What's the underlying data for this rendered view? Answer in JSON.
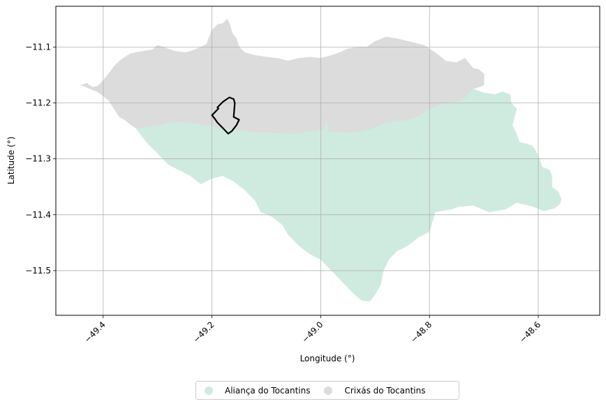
{
  "chart_data": {
    "type": "map",
    "xlabel": "Longitude (°)",
    "ylabel": "Latitude (°)",
    "xlim": [
      -49.487,
      -48.487
    ],
    "ylim": [
      -11.58,
      -11.027
    ],
    "x_ticks": [
      -49.4,
      -49.2,
      -49.0,
      -48.8,
      -48.6
    ],
    "x_tick_labels": [
      "−49.4",
      "−49.2",
      "−49.0",
      "−48.8",
      "−48.6"
    ],
    "y_ticks": [
      -11.1,
      -11.2,
      -11.3,
      -11.4,
      -11.5
    ],
    "y_tick_labels": [
      "−11.1",
      "−11.2",
      "−11.3",
      "−11.4",
      "−11.5"
    ],
    "grid": true,
    "legend_position": "bottom-center",
    "regions": [
      {
        "name": "Aliança do Tocantins",
        "color": "#cfebdf",
        "lonlat": [
          [
            -49.34,
            -11.245
          ],
          [
            -49.3,
            -11.24
          ],
          [
            -49.28,
            -11.235
          ],
          [
            -49.25,
            -11.233
          ],
          [
            -49.22,
            -11.238
          ],
          [
            -49.19,
            -11.243
          ],
          [
            -49.165,
            -11.247
          ],
          [
            -49.14,
            -11.25
          ],
          [
            -49.12,
            -11.253
          ],
          [
            -49.09,
            -11.253
          ],
          [
            -49.05,
            -11.255
          ],
          [
            -49.02,
            -11.25
          ],
          [
            -48.995,
            -11.248
          ],
          [
            -48.99,
            -11.23
          ],
          [
            -48.985,
            -11.25
          ],
          [
            -48.97,
            -11.252
          ],
          [
            -48.95,
            -11.253
          ],
          [
            -48.925,
            -11.25
          ],
          [
            -48.91,
            -11.247
          ],
          [
            -48.88,
            -11.235
          ],
          [
            -48.84,
            -11.23
          ],
          [
            -48.82,
            -11.223
          ],
          [
            -48.8,
            -11.21
          ],
          [
            -48.77,
            -11.2
          ],
          [
            -48.74,
            -11.195
          ],
          [
            -48.72,
            -11.175
          ],
          [
            -48.7,
            -11.182
          ],
          [
            -48.68,
            -11.185
          ],
          [
            -48.665,
            -11.18
          ],
          [
            -48.652,
            -11.185
          ],
          [
            -48.65,
            -11.2
          ],
          [
            -48.64,
            -11.21
          ],
          [
            -48.648,
            -11.24
          ],
          [
            -48.64,
            -11.255
          ],
          [
            -48.635,
            -11.27
          ],
          [
            -48.612,
            -11.276
          ],
          [
            -48.605,
            -11.285
          ],
          [
            -48.597,
            -11.303
          ],
          [
            -48.593,
            -11.315
          ],
          [
            -48.58,
            -11.32
          ],
          [
            -48.575,
            -11.33
          ],
          [
            -48.575,
            -11.35
          ],
          [
            -48.563,
            -11.36
          ],
          [
            -48.558,
            -11.372
          ],
          [
            -48.56,
            -11.38
          ],
          [
            -48.57,
            -11.388
          ],
          [
            -48.59,
            -11.393
          ],
          [
            -48.61,
            -11.385
          ],
          [
            -48.64,
            -11.378
          ],
          [
            -48.66,
            -11.39
          ],
          [
            -48.69,
            -11.395
          ],
          [
            -48.72,
            -11.383
          ],
          [
            -48.745,
            -11.385
          ],
          [
            -48.76,
            -11.39
          ],
          [
            -48.79,
            -11.395
          ],
          [
            -48.8,
            -11.43
          ],
          [
            -48.82,
            -11.44
          ],
          [
            -48.84,
            -11.455
          ],
          [
            -48.86,
            -11.465
          ],
          [
            -48.875,
            -11.48
          ],
          [
            -48.885,
            -11.5
          ],
          [
            -48.89,
            -11.525
          ],
          [
            -48.9,
            -11.542
          ],
          [
            -48.91,
            -11.555
          ],
          [
            -48.925,
            -11.553
          ],
          [
            -48.94,
            -11.54
          ],
          [
            -48.955,
            -11.525
          ],
          [
            -48.97,
            -11.51
          ],
          [
            -48.985,
            -11.495
          ],
          [
            -49.0,
            -11.48
          ],
          [
            -49.02,
            -11.47
          ],
          [
            -49.04,
            -11.455
          ],
          [
            -49.06,
            -11.435
          ],
          [
            -49.07,
            -11.418
          ],
          [
            -49.09,
            -11.403
          ],
          [
            -49.11,
            -11.395
          ],
          [
            -49.12,
            -11.375
          ],
          [
            -49.14,
            -11.355
          ],
          [
            -49.16,
            -11.34
          ],
          [
            -49.18,
            -11.33
          ],
          [
            -49.2,
            -11.335
          ],
          [
            -49.22,
            -11.345
          ],
          [
            -49.24,
            -11.33
          ],
          [
            -49.26,
            -11.32
          ],
          [
            -49.28,
            -11.31
          ],
          [
            -49.3,
            -11.29
          ],
          [
            -49.32,
            -11.27
          ]
        ]
      },
      {
        "name": "Crixás do Tocantins",
        "color": "#dcdcdc",
        "lonlat": [
          [
            -49.44,
            -11.168
          ],
          [
            -49.43,
            -11.165
          ],
          [
            -49.42,
            -11.172
          ],
          [
            -49.41,
            -11.17
          ],
          [
            -49.4,
            -11.16
          ],
          [
            -49.39,
            -11.148
          ],
          [
            -49.38,
            -11.135
          ],
          [
            -49.37,
            -11.125
          ],
          [
            -49.36,
            -11.118
          ],
          [
            -49.35,
            -11.112
          ],
          [
            -49.33,
            -11.108
          ],
          [
            -49.31,
            -11.105
          ],
          [
            -49.3,
            -11.097
          ],
          [
            -49.29,
            -11.1
          ],
          [
            -49.27,
            -11.107
          ],
          [
            -49.25,
            -11.11
          ],
          [
            -49.24,
            -11.108
          ],
          [
            -49.22,
            -11.1
          ],
          [
            -49.21,
            -11.095
          ],
          [
            -49.2,
            -11.07
          ],
          [
            -49.19,
            -11.06
          ],
          [
            -49.18,
            -11.058
          ],
          [
            -49.172,
            -11.05
          ],
          [
            -49.167,
            -11.06
          ],
          [
            -49.163,
            -11.075
          ],
          [
            -49.155,
            -11.085
          ],
          [
            -49.15,
            -11.1
          ],
          [
            -49.14,
            -11.11
          ],
          [
            -49.12,
            -11.115
          ],
          [
            -49.1,
            -11.118
          ],
          [
            -49.08,
            -11.12
          ],
          [
            -49.06,
            -11.125
          ],
          [
            -49.04,
            -11.12
          ],
          [
            -49.02,
            -11.118
          ],
          [
            -49.0,
            -11.12
          ],
          [
            -48.98,
            -11.115
          ],
          [
            -48.965,
            -11.11
          ],
          [
            -48.95,
            -11.103
          ],
          [
            -48.93,
            -11.1
          ],
          [
            -48.915,
            -11.1
          ],
          [
            -48.9,
            -11.09
          ],
          [
            -48.88,
            -11.082
          ],
          [
            -48.86,
            -11.085
          ],
          [
            -48.83,
            -11.092
          ],
          [
            -48.81,
            -11.097
          ],
          [
            -48.79,
            -11.11
          ],
          [
            -48.77,
            -11.125
          ],
          [
            -48.75,
            -11.128
          ],
          [
            -48.735,
            -11.12
          ],
          [
            -48.72,
            -11.138
          ],
          [
            -48.71,
            -11.14
          ],
          [
            -48.7,
            -11.148
          ],
          [
            -48.7,
            -11.168
          ],
          [
            -48.72,
            -11.175
          ],
          [
            -48.74,
            -11.195
          ],
          [
            -48.77,
            -11.2
          ],
          [
            -48.8,
            -11.21
          ],
          [
            -48.82,
            -11.223
          ],
          [
            -48.84,
            -11.23
          ],
          [
            -48.88,
            -11.235
          ],
          [
            -48.91,
            -11.247
          ],
          [
            -48.925,
            -11.25
          ],
          [
            -48.95,
            -11.253
          ],
          [
            -48.97,
            -11.252
          ],
          [
            -48.985,
            -11.25
          ],
          [
            -48.99,
            -11.23
          ],
          [
            -48.995,
            -11.248
          ],
          [
            -49.02,
            -11.25
          ],
          [
            -49.05,
            -11.255
          ],
          [
            -49.09,
            -11.253
          ],
          [
            -49.12,
            -11.253
          ],
          [
            -49.14,
            -11.25
          ],
          [
            -49.165,
            -11.247
          ],
          [
            -49.19,
            -11.243
          ],
          [
            -49.22,
            -11.238
          ],
          [
            -49.25,
            -11.233
          ],
          [
            -49.28,
            -11.235
          ],
          [
            -49.3,
            -11.24
          ],
          [
            -49.34,
            -11.245
          ],
          [
            -49.35,
            -11.238
          ],
          [
            -49.36,
            -11.23
          ],
          [
            -49.37,
            -11.225
          ],
          [
            -49.38,
            -11.21
          ],
          [
            -49.39,
            -11.195
          ],
          [
            -49.41,
            -11.18
          ]
        ]
      }
    ],
    "outline": {
      "color": "#000000",
      "lonlat": [
        [
          -49.2,
          -11.222
        ],
        [
          -49.188,
          -11.21
        ],
        [
          -49.19,
          -11.208
        ],
        [
          -49.18,
          -11.198
        ],
        [
          -49.168,
          -11.19
        ],
        [
          -49.16,
          -11.193
        ],
        [
          -49.158,
          -11.2
        ],
        [
          -49.16,
          -11.225
        ],
        [
          -49.15,
          -11.23
        ],
        [
          -49.155,
          -11.24
        ],
        [
          -49.163,
          -11.25
        ],
        [
          -49.17,
          -11.255
        ],
        [
          -49.18,
          -11.245
        ],
        [
          -49.19,
          -11.235
        ],
        [
          -49.195,
          -11.228
        ]
      ]
    }
  }
}
